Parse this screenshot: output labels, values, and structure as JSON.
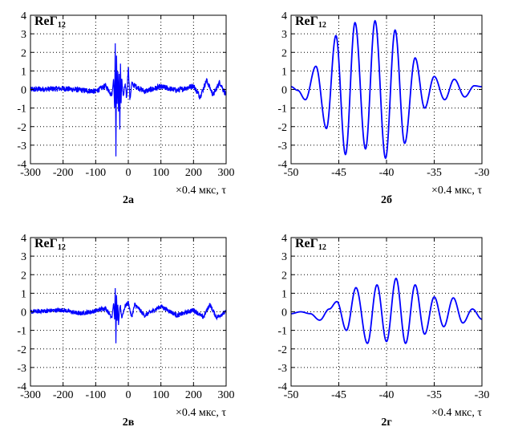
{
  "chart_data": [
    {
      "type": "line",
      "panel_label": "2а",
      "ylabel_main": "ReΓ",
      "ylabel_sub": "12",
      "xlabel": "×0.4 мкс, τ",
      "xlim": [
        -300,
        300
      ],
      "ylim": [
        -4,
        4
      ],
      "xticks": [
        "-300",
        "-200",
        "-100",
        "0",
        "100",
        "200",
        "300"
      ],
      "yticks": [
        "4",
        "3",
        "2",
        "1",
        "0",
        "-1",
        "-2",
        "-3",
        "-4"
      ],
      "grid": true,
      "color": "#0000ff",
      "noise_amplitude": 0.15,
      "x": [
        -300,
        -200,
        -100,
        -70,
        -50,
        -45,
        -42,
        -40,
        -38,
        -36,
        -34,
        -32,
        -30,
        -28,
        -26,
        -24,
        -22,
        -20,
        -15,
        -10,
        -5,
        0,
        5,
        10,
        50,
        100,
        150,
        200,
        220,
        240,
        260,
        280,
        300
      ],
      "y": [
        0,
        0.05,
        -0.1,
        0.2,
        -0.3,
        0.6,
        -1.0,
        2.5,
        -3.6,
        1.8,
        -0.8,
        1.0,
        -1.2,
        0.9,
        -2.2,
        1.4,
        -0.6,
        0.5,
        -0.4,
        0.3,
        -0.5,
        1.3,
        -0.6,
        0.3,
        -0.1,
        0.15,
        -0.05,
        0.2,
        -0.4,
        0.5,
        -0.3,
        0.4,
        -0.3
      ]
    },
    {
      "type": "line",
      "panel_label": "2б",
      "ylabel_main": "ReΓ",
      "ylabel_sub": "12",
      "xlabel": "×0.4 мкс, τ",
      "xlim": [
        -50,
        -30
      ],
      "ylim": [
        -4,
        4
      ],
      "xticks": [
        "-50",
        "-45",
        "-40",
        "-35",
        "-30"
      ],
      "yticks": [
        "4",
        "3",
        "2",
        "1",
        "0",
        "-1",
        "-2",
        "-3",
        "-4"
      ],
      "grid": true,
      "color": "#0000ff",
      "x": [
        -50,
        -49.3,
        -48.5,
        -47.4,
        -46.3,
        -45.3,
        -44.3,
        -43.3,
        -42.2,
        -41.2,
        -40.1,
        -39.1,
        -38.1,
        -37.0,
        -36.0,
        -35.0,
        -33.9,
        -32.9,
        -31.8,
        -30.8,
        -30
      ],
      "y": [
        0.15,
        -0.05,
        -0.55,
        1.25,
        -2.1,
        2.9,
        -3.5,
        3.6,
        -3.2,
        3.7,
        -3.7,
        3.2,
        -2.9,
        1.7,
        -1.0,
        0.7,
        -0.55,
        0.55,
        -0.4,
        0.2,
        0.15
      ]
    },
    {
      "type": "line",
      "panel_label": "2в",
      "ylabel_main": "ReΓ",
      "ylabel_sub": "12",
      "xlabel": "×0.4 мкс, τ",
      "xlim": [
        -300,
        300
      ],
      "ylim": [
        -4,
        4
      ],
      "xticks": [
        "-300",
        "-200",
        "-100",
        "0",
        "100",
        "200",
        "300"
      ],
      "yticks": [
        "4",
        "3",
        "2",
        "1",
        "0",
        "-1",
        "-2",
        "-3",
        "-4"
      ],
      "grid": true,
      "color": "#0000ff",
      "noise_amplitude": 0.12,
      "x": [
        -300,
        -200,
        -150,
        -100,
        -70,
        -50,
        -45,
        -42,
        -40,
        -38,
        -36,
        -34,
        -32,
        -30,
        -25,
        -20,
        -10,
        0,
        10,
        20,
        50,
        100,
        150,
        200,
        230,
        250,
        270,
        300
      ],
      "y": [
        0,
        0.1,
        -0.1,
        0.05,
        0.2,
        -0.3,
        0.5,
        -0.4,
        1.3,
        -1.7,
        0.9,
        -0.5,
        0.4,
        -0.7,
        0.4,
        -0.3,
        0.3,
        0.5,
        -0.3,
        0.4,
        -0.2,
        0.3,
        -0.2,
        0.1,
        -0.3,
        0.4,
        -0.3,
        0.0
      ]
    },
    {
      "type": "line",
      "panel_label": "2г",
      "ylabel_main": "ReΓ",
      "ylabel_sub": "12",
      "xlabel": "×0.4 мкс, τ",
      "xlim": [
        -50,
        -30
      ],
      "ylim": [
        -4,
        4
      ],
      "xticks": [
        "-50",
        "-45",
        "-40",
        "-35",
        "-30"
      ],
      "yticks": [
        "4",
        "3",
        "2",
        "1",
        "0",
        "-1",
        "-2",
        "-3",
        "-4"
      ],
      "grid": true,
      "color": "#0000ff",
      "x": [
        -50,
        -49.0,
        -48.0,
        -47.0,
        -46.0,
        -45.2,
        -44.2,
        -43.2,
        -42.0,
        -41.0,
        -40.0,
        -39.0,
        -38.0,
        -37.0,
        -36.0,
        -35.0,
        -34.0,
        -33.0,
        -32.0,
        -31.0,
        -30
      ],
      "y": [
        -0.1,
        0.0,
        -0.1,
        -0.45,
        0.15,
        0.55,
        -1.0,
        1.3,
        -1.7,
        1.45,
        -1.6,
        1.8,
        -1.7,
        1.45,
        -1.2,
        0.8,
        -0.8,
        0.75,
        -0.6,
        0.15,
        -0.4
      ]
    }
  ]
}
